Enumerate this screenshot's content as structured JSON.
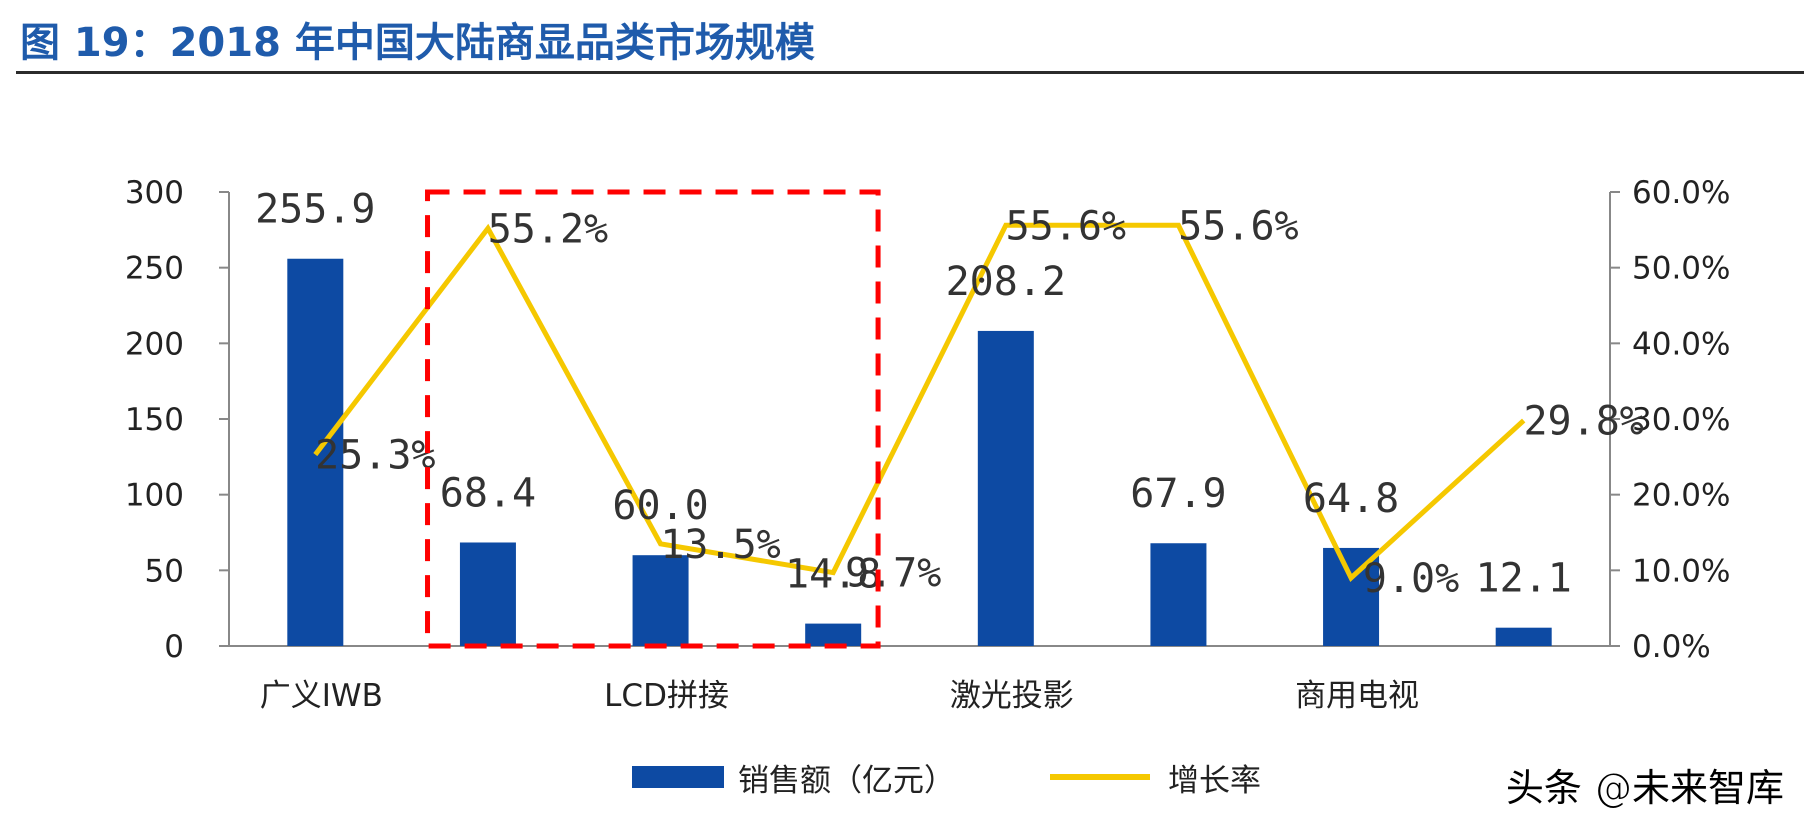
{
  "header": {
    "title": "图 19：2018 年中国大陆商显品类市场规模"
  },
  "chart_data": {
    "type": "bar+line",
    "title": "",
    "x": [
      "广义IWB",
      "",
      "LCD拼接",
      "",
      "激光投影",
      "",
      "商用电视",
      ""
    ],
    "category_labels": [
      "广义IWB",
      "LCD拼接",
      "激光投影",
      "商用电视"
    ],
    "series": [
      {
        "name": "销售额（亿元）",
        "type": "bar",
        "axis": "left",
        "values": [
          255.9,
          68.4,
          60.0,
          14.8,
          208.2,
          67.9,
          64.8,
          12.1
        ],
        "labels": [
          "255.9",
          "68.4",
          "60.0",
          "14.8",
          "208.2",
          "67.9",
          "64.8",
          "12.1"
        ]
      },
      {
        "name": "增长率",
        "type": "line",
        "axis": "right",
        "values": [
          25.3,
          55.2,
          13.5,
          9.7,
          55.6,
          55.6,
          9.0,
          29.8
        ],
        "labels": [
          "25.3%",
          "55.2%",
          "13.5%",
          "9.7%",
          "55.6%",
          "55.6%",
          "9.0%",
          "29.8%"
        ]
      }
    ],
    "y_left": {
      "min": 0,
      "max": 300,
      "ticks": [
        "0",
        "50",
        "100",
        "150",
        "200",
        "250",
        "300"
      ]
    },
    "y_right": {
      "min": 0,
      "max": 60,
      "ticks": [
        "0.0%",
        "10.0%",
        "20.0%",
        "30.0%",
        "40.0%",
        "50.0%",
        "60.0%"
      ]
    },
    "highlight": {
      "from_index": 1,
      "to_index": 3,
      "style": "dashed",
      "color": "#ff0000"
    },
    "grid": false,
    "legend_position": "bottom"
  },
  "colors": {
    "bar": "#0d4aa3",
    "line": "#f5c800",
    "title": "#1f5bab",
    "highlight": "#ff0000"
  },
  "legend": {
    "bar_label": "销售额（亿元）",
    "line_label": "增长率"
  },
  "watermark": "头条 @未来智库"
}
